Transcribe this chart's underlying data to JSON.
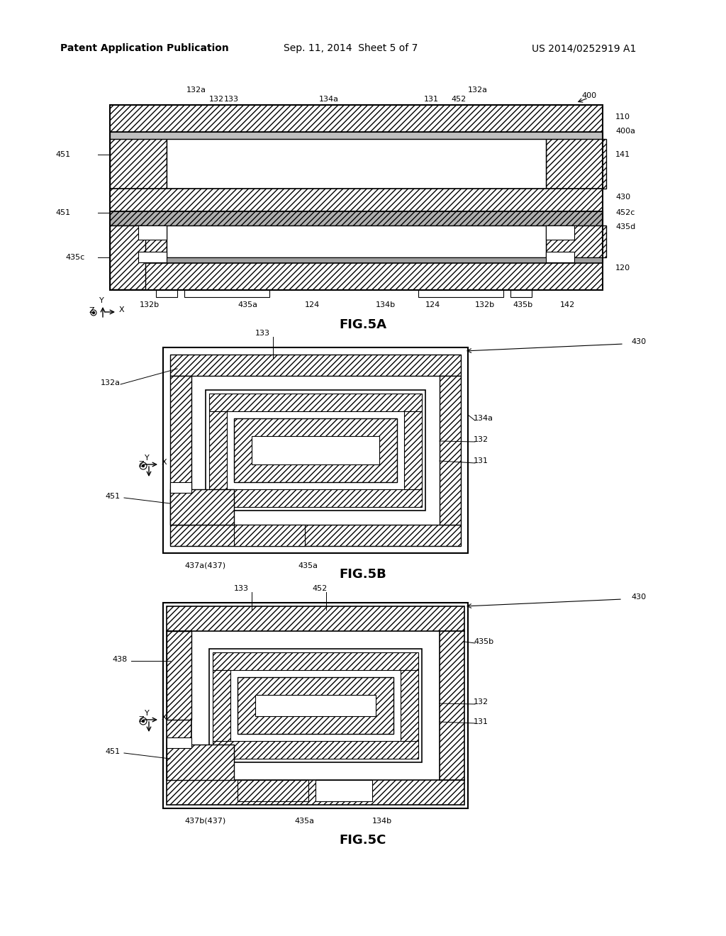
{
  "header_left": "Patent Application Publication",
  "header_center": "Sep. 11, 2014  Sheet 5 of 7",
  "header_right": "US 2014/0252919 A1",
  "fig5a_label": "FIG.5A",
  "fig5b_label": "FIG.5B",
  "fig5c_label": "FIG.5C",
  "background": "#ffffff",
  "line_color": "#000000",
  "hatch_color": "#000000",
  "gray_fill": "#d0d0d0",
  "white_fill": "#ffffff",
  "light_gray": "#e8e8e8"
}
